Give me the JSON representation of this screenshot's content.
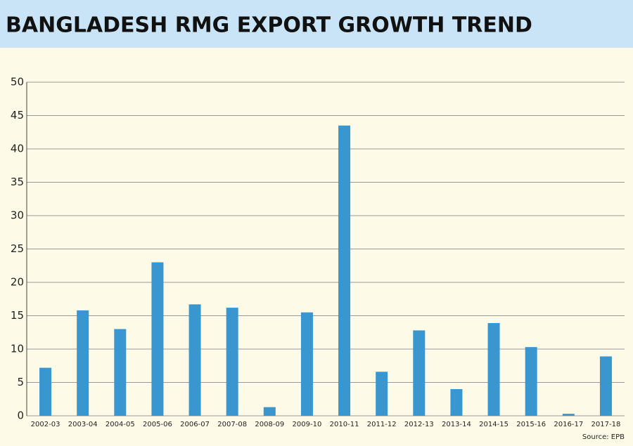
{
  "chart_data": {
    "type": "bar",
    "title": "BANGLADESH RMG EXPORT GROWTH TREND",
    "categories": [
      "2002-03",
      "2003-04",
      "2004-05",
      "2005-06",
      "2006-07",
      "2007-08",
      "2008-09",
      "2009-10",
      "2010-11",
      "2011-12",
      "2012-13",
      "2013-14",
      "2014-15",
      "2015-16",
      "2016-17",
      "2017-18"
    ],
    "values": [
      7.2,
      15.8,
      13,
      23,
      16.7,
      16.2,
      1.3,
      15.5,
      43.5,
      6.6,
      12.8,
      4,
      13.9,
      10.3,
      0.3,
      8.9
    ],
    "color": "#3a96cf",
    "ylim": [
      0,
      50
    ],
    "yticks": [
      0,
      5,
      10,
      15,
      20,
      25,
      30,
      35,
      40,
      45,
      50
    ],
    "grid": true,
    "source": "Source: EPB"
  }
}
